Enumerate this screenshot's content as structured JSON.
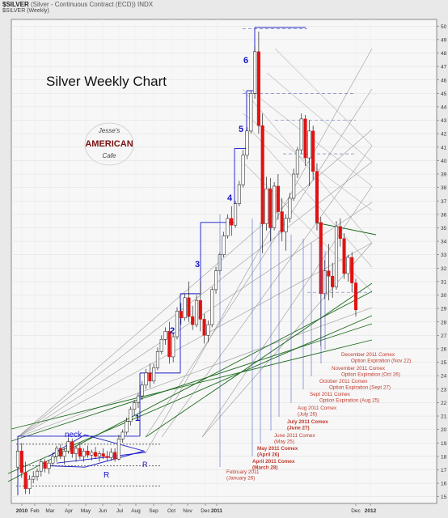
{
  "header": {
    "symbol": "$SILVER",
    "description": "(Silver - Continuous Contract (ECD)) INDX",
    "subline": "$SILVER (Weekly)"
  },
  "chart_data": {
    "type": "candlestick",
    "title": "Silver Weekly Chart",
    "logo_text": [
      "Jesse's",
      "AMERICAN",
      "Cafe"
    ],
    "ylim": [
      14.5,
      50.5
    ],
    "y_ticks": [
      15,
      16,
      17,
      18,
      19,
      20,
      21,
      22,
      23,
      24,
      25,
      26,
      27,
      28,
      29,
      30,
      31,
      32,
      33,
      34,
      35,
      36,
      37,
      38,
      39,
      40,
      41,
      42,
      43,
      44,
      45,
      46,
      47,
      48,
      49,
      50
    ],
    "x_tick_labels": [
      "2010",
      "Feb",
      "Mar",
      "Apr",
      "May",
      "Jun",
      "Jul",
      "Aug",
      "Sep",
      "Oct",
      "Nov",
      "Dec",
      "2011",
      "Dec",
      "2012"
    ],
    "wave_labels": [
      "1",
      "2",
      "3",
      "4",
      "5",
      "6"
    ],
    "pattern_labels": [
      "neck",
      "R",
      "R"
    ],
    "candles": [
      {
        "o": 17.2,
        "h": 18.9,
        "l": 17.0,
        "c": 18.4
      },
      {
        "o": 18.4,
        "h": 19.0,
        "l": 16.4,
        "c": 16.8
      },
      {
        "o": 16.8,
        "h": 17.6,
        "l": 15.2,
        "c": 15.6
      },
      {
        "o": 15.6,
        "h": 16.6,
        "l": 15.2,
        "c": 16.3
      },
      {
        "o": 16.3,
        "h": 16.9,
        "l": 16.0,
        "c": 16.5
      },
      {
        "o": 16.5,
        "h": 17.1,
        "l": 16.2,
        "c": 16.9
      },
      {
        "o": 16.9,
        "h": 17.8,
        "l": 16.5,
        "c": 17.6
      },
      {
        "o": 17.6,
        "h": 17.8,
        "l": 16.8,
        "c": 17.1
      },
      {
        "o": 17.1,
        "h": 17.7,
        "l": 16.7,
        "c": 17.5
      },
      {
        "o": 17.5,
        "h": 18.3,
        "l": 17.3,
        "c": 18.0
      },
      {
        "o": 18.0,
        "h": 18.8,
        "l": 17.6,
        "c": 18.6
      },
      {
        "o": 18.6,
        "h": 18.9,
        "l": 17.8,
        "c": 18.0
      },
      {
        "o": 18.0,
        "h": 18.6,
        "l": 17.4,
        "c": 18.4
      },
      {
        "o": 18.4,
        "h": 19.4,
        "l": 18.2,
        "c": 19.1
      },
      {
        "o": 19.1,
        "h": 19.3,
        "l": 17.9,
        "c": 18.2
      },
      {
        "o": 18.2,
        "h": 18.8,
        "l": 17.6,
        "c": 18.6
      },
      {
        "o": 18.6,
        "h": 19.0,
        "l": 17.8,
        "c": 18.0
      },
      {
        "o": 18.0,
        "h": 18.6,
        "l": 17.6,
        "c": 18.4
      },
      {
        "o": 18.4,
        "h": 18.8,
        "l": 17.9,
        "c": 18.1
      },
      {
        "o": 18.1,
        "h": 18.5,
        "l": 17.7,
        "c": 18.3
      },
      {
        "o": 18.3,
        "h": 18.7,
        "l": 17.8,
        "c": 18.0
      },
      {
        "o": 18.0,
        "h": 18.4,
        "l": 17.6,
        "c": 18.2
      },
      {
        "o": 18.2,
        "h": 18.6,
        "l": 17.8,
        "c": 18.0
      },
      {
        "o": 18.0,
        "h": 18.4,
        "l": 17.7,
        "c": 17.9
      },
      {
        "o": 17.9,
        "h": 18.6,
        "l": 17.7,
        "c": 18.3
      },
      {
        "o": 18.3,
        "h": 18.6,
        "l": 17.6,
        "c": 17.8
      },
      {
        "o": 17.8,
        "h": 19.6,
        "l": 17.7,
        "c": 19.3
      },
      {
        "o": 19.3,
        "h": 20.0,
        "l": 19.0,
        "c": 19.8
      },
      {
        "o": 19.8,
        "h": 20.9,
        "l": 19.6,
        "c": 20.6
      },
      {
        "o": 20.6,
        "h": 21.7,
        "l": 20.3,
        "c": 21.5
      },
      {
        "o": 21.5,
        "h": 22.2,
        "l": 21.0,
        "c": 22.0
      },
      {
        "o": 22.0,
        "h": 22.7,
        "l": 21.6,
        "c": 22.5
      },
      {
        "o": 22.5,
        "h": 23.6,
        "l": 22.2,
        "c": 23.3
      },
      {
        "o": 23.3,
        "h": 24.5,
        "l": 23.0,
        "c": 24.2
      },
      {
        "o": 24.2,
        "h": 24.9,
        "l": 23.1,
        "c": 23.6
      },
      {
        "o": 23.6,
        "h": 24.9,
        "l": 23.4,
        "c": 24.6
      },
      {
        "o": 24.6,
        "h": 26.1,
        "l": 24.4,
        "c": 25.8
      },
      {
        "o": 25.8,
        "h": 27.0,
        "l": 25.6,
        "c": 26.7
      },
      {
        "o": 26.7,
        "h": 27.6,
        "l": 26.3,
        "c": 27.3
      },
      {
        "o": 27.3,
        "h": 28.0,
        "l": 24.9,
        "c": 25.4
      },
      {
        "o": 25.4,
        "h": 27.2,
        "l": 25.0,
        "c": 26.9
      },
      {
        "o": 26.9,
        "h": 29.1,
        "l": 26.7,
        "c": 28.8
      },
      {
        "o": 28.8,
        "h": 29.4,
        "l": 27.8,
        "c": 28.3
      },
      {
        "o": 28.3,
        "h": 30.1,
        "l": 28.1,
        "c": 29.8
      },
      {
        "o": 29.8,
        "h": 31.0,
        "l": 28.0,
        "c": 28.4
      },
      {
        "o": 28.4,
        "h": 29.2,
        "l": 27.4,
        "c": 27.8
      },
      {
        "o": 27.8,
        "h": 30.0,
        "l": 27.6,
        "c": 29.6
      },
      {
        "o": 29.6,
        "h": 31.0,
        "l": 27.3,
        "c": 28.2
      },
      {
        "o": 28.2,
        "h": 28.6,
        "l": 26.4,
        "c": 27.0
      },
      {
        "o": 27.0,
        "h": 28.1,
        "l": 26.5,
        "c": 27.8
      },
      {
        "o": 27.8,
        "h": 30.6,
        "l": 27.6,
        "c": 30.4
      },
      {
        "o": 30.4,
        "h": 32.1,
        "l": 30.1,
        "c": 31.8
      },
      {
        "o": 31.8,
        "h": 33.2,
        "l": 31.5,
        "c": 33.0
      },
      {
        "o": 33.0,
        "h": 34.7,
        "l": 32.8,
        "c": 34.4
      },
      {
        "o": 34.4,
        "h": 36.0,
        "l": 34.2,
        "c": 35.7
      },
      {
        "o": 35.7,
        "h": 36.6,
        "l": 34.4,
        "c": 35.2
      },
      {
        "o": 35.2,
        "h": 37.0,
        "l": 35.0,
        "c": 36.8
      },
      {
        "o": 36.8,
        "h": 38.5,
        "l": 36.6,
        "c": 38.2
      },
      {
        "o": 38.2,
        "h": 40.8,
        "l": 38.0,
        "c": 40.4
      },
      {
        "o": 40.4,
        "h": 42.5,
        "l": 40.1,
        "c": 42.2
      },
      {
        "o": 42.2,
        "h": 45.2,
        "l": 42.0,
        "c": 45.0
      },
      {
        "o": 45.0,
        "h": 48.5,
        "l": 44.6,
        "c": 48.1
      },
      {
        "o": 48.1,
        "h": 49.6,
        "l": 42.0,
        "c": 42.6
      },
      {
        "o": 42.6,
        "h": 43.5,
        "l": 33.1,
        "c": 35.3
      },
      {
        "o": 35.3,
        "h": 38.8,
        "l": 34.8,
        "c": 37.9
      },
      {
        "o": 37.9,
        "h": 38.7,
        "l": 34.0,
        "c": 35.0
      },
      {
        "o": 35.0,
        "h": 38.4,
        "l": 34.8,
        "c": 38.1
      },
      {
        "o": 38.1,
        "h": 39.0,
        "l": 35.6,
        "c": 36.2
      },
      {
        "o": 36.2,
        "h": 37.2,
        "l": 34.0,
        "c": 34.7
      },
      {
        "o": 34.7,
        "h": 36.0,
        "l": 33.3,
        "c": 35.7
      },
      {
        "o": 35.7,
        "h": 37.6,
        "l": 35.4,
        "c": 37.2
      },
      {
        "o": 37.2,
        "h": 39.4,
        "l": 37.0,
        "c": 39.0
      },
      {
        "o": 39.0,
        "h": 41.0,
        "l": 38.7,
        "c": 40.8
      },
      {
        "o": 40.8,
        "h": 43.5,
        "l": 40.5,
        "c": 43.1
      },
      {
        "o": 43.1,
        "h": 43.4,
        "l": 39.6,
        "c": 40.2
      },
      {
        "o": 40.2,
        "h": 43.0,
        "l": 38.1,
        "c": 42.2
      },
      {
        "o": 42.2,
        "h": 42.6,
        "l": 38.6,
        "c": 39.2
      },
      {
        "o": 39.2,
        "h": 39.8,
        "l": 34.8,
        "c": 35.4
      },
      {
        "o": 35.4,
        "h": 35.8,
        "l": 26.2,
        "c": 30.1
      },
      {
        "o": 30.1,
        "h": 32.6,
        "l": 29.7,
        "c": 31.8
      },
      {
        "o": 31.8,
        "h": 33.8,
        "l": 29.6,
        "c": 31.4
      },
      {
        "o": 31.4,
        "h": 32.4,
        "l": 29.8,
        "c": 30.6
      },
      {
        "o": 30.6,
        "h": 35.5,
        "l": 30.4,
        "c": 35.1
      },
      {
        "o": 35.1,
        "h": 35.7,
        "l": 33.6,
        "c": 34.2
      },
      {
        "o": 34.2,
        "h": 34.6,
        "l": 31.2,
        "c": 31.6
      },
      {
        "o": 31.6,
        "h": 33.0,
        "l": 31.0,
        "c": 32.8
      },
      {
        "o": 32.8,
        "h": 33.2,
        "l": 30.2,
        "c": 30.9
      },
      {
        "o": 30.9,
        "h": 31.2,
        "l": 28.4,
        "c": 28.9
      }
    ],
    "annotations": [
      [
        "February 2011",
        "(January 26)"
      ],
      [
        "April 2011 Comex",
        "(March 28)"
      ],
      [
        "May 2011 Comex",
        "(April 26)"
      ],
      [
        "June 2011 Comex",
        "(May 25)"
      ],
      [
        "July 2011 Comex",
        "(June 27)"
      ],
      [
        "Aug 2011 Comex",
        "(July 26)"
      ],
      [
        "Sept 2011 Comex",
        "Option Expiration (Aug 25)"
      ],
      [
        "October 2011 Comex",
        "Option Expiration (Sept 27)"
      ],
      [
        "November 2011 Comex",
        "Option Expiration (Oct 26)"
      ],
      [
        "December 2011 Comex",
        "Option Expiration (Nov 22)"
      ]
    ],
    "colors": {
      "up": "#ffffff",
      "down": "#e01212",
      "wick": "#222222",
      "wave": "#1515c8",
      "gann": "#9a9a9a",
      "green": "#1d6b1d",
      "annotation": "#c0392b",
      "expiry_line": "#5060c8",
      "background": "#f7f7f7"
    }
  }
}
